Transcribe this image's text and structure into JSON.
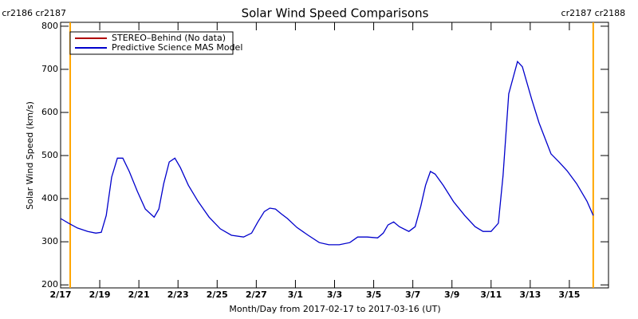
{
  "chart_data": {
    "type": "line",
    "title": "Solar Wind Speed Comparisons",
    "x_label": "Month/Day from 2017-02-17 to 2017-03-16 (UT)",
    "y_label": "Solar Wind Speed (km/s)",
    "x": [
      0,
      0.41,
      0.86,
      1.39,
      1.8,
      2.08,
      2.33,
      2.61,
      2.9,
      3.18,
      3.51,
      3.92,
      4.33,
      4.78,
      5.02,
      5.27,
      5.55,
      5.84,
      6.12,
      6.53,
      7.02,
      7.59,
      8.16,
      8.73,
      9.35,
      9.76,
      10.08,
      10.41,
      10.69,
      10.98,
      11.27,
      11.59,
      12.08,
      12.65,
      13.22,
      13.71,
      14.24,
      14.78,
      15.18,
      15.67,
      16.2,
      16.49,
      16.73,
      17.02,
      17.31,
      17.8,
      18.12,
      18.41,
      18.65,
      18.9,
      19.14,
      19.55,
      20.08,
      20.65,
      21.18,
      21.59,
      22.0,
      22.37,
      22.61,
      22.9,
      23.35,
      23.6,
      23.76,
      24.08,
      24.45,
      24.78,
      25.06,
      25.47,
      25.88,
      26.37,
      26.9,
      27.22
    ],
    "series": [
      {
        "name": "STEREO–Behind (No data)",
        "color": "#b00000",
        "values": [
          null,
          null,
          null,
          null,
          null,
          null,
          null,
          null,
          null,
          null,
          null,
          null,
          null,
          null,
          null,
          null,
          null,
          null,
          null,
          null,
          null,
          null,
          null,
          null,
          null,
          null,
          null,
          null,
          null,
          null,
          null,
          null,
          null,
          null,
          null,
          null,
          null,
          null,
          null,
          null,
          null,
          null,
          null,
          null,
          null,
          null,
          null,
          null,
          null,
          null,
          null,
          null,
          null,
          null,
          null,
          null,
          null,
          null,
          null,
          null,
          null,
          null,
          null,
          null,
          null,
          null,
          null,
          null,
          null,
          null,
          null,
          null
        ]
      },
      {
        "name": "Predictive Science MAS Model",
        "color": "#0000cc",
        "values": [
          354,
          343,
          332,
          324,
          320,
          322,
          361,
          450,
          494,
          494,
          463,
          417,
          376,
          357,
          376,
          435,
          485,
          494,
          472,
          431,
          394,
          357,
          330,
          315,
          311,
          320,
          346,
          370,
          378,
          376,
          365,
          354,
          333,
          315,
          298,
          293,
          293,
          298,
          311,
          311,
          309,
          320,
          339,
          346,
          335,
          324,
          335,
          383,
          431,
          463,
          457,
          431,
          393,
          361,
          335,
          324,
          324,
          343,
          454,
          643,
          718,
          706,
          680,
          630,
          576,
          537,
          504,
          485,
          465,
          435,
          394,
          361
        ]
      }
    ],
    "xlim": [
      0,
      28
    ],
    "xticks": [
      {
        "value": 0,
        "label": "2/17"
      },
      {
        "value": 2,
        "label": "2/19"
      },
      {
        "value": 4,
        "label": "2/21"
      },
      {
        "value": 6,
        "label": "2/23"
      },
      {
        "value": 8,
        "label": "2/25"
      },
      {
        "value": 10,
        "label": "2/27"
      },
      {
        "value": 12,
        "label": "3/1"
      },
      {
        "value": 14,
        "label": "3/3"
      },
      {
        "value": 16,
        "label": "3/5"
      },
      {
        "value": 18,
        "label": "3/7"
      },
      {
        "value": 20,
        "label": "3/9"
      },
      {
        "value": 22,
        "label": "3/11"
      },
      {
        "value": 24,
        "label": "3/13"
      },
      {
        "value": 26,
        "label": "3/15"
      }
    ],
    "ylim": [
      193,
      809
    ],
    "yticks": [
      200,
      300,
      400,
      500,
      600,
      700,
      800
    ],
    "legend": "upper left",
    "markers_color": "#ffa500",
    "markers": [
      {
        "x": 0.49,
        "label": "cr2186 cr2187"
      },
      {
        "x": 27.22,
        "label": "cr2187 cr2188"
      }
    ]
  }
}
